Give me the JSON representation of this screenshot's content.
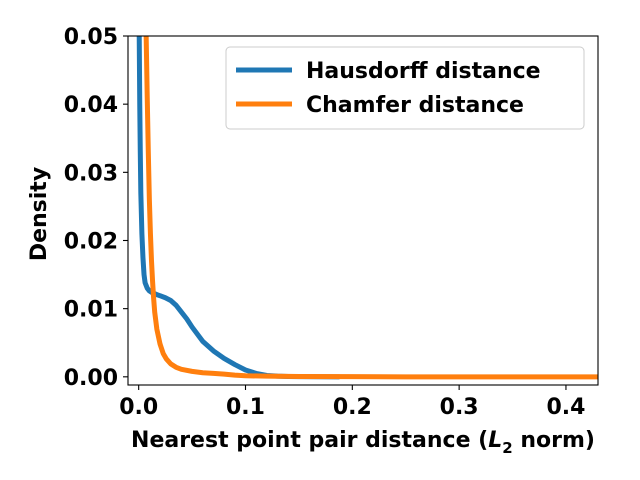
{
  "chart_data": {
    "type": "line",
    "xlabel": {
      "prefix": "Nearest point pair distance (",
      "var": "L",
      "sub": "2",
      "suffix": " norm)"
    },
    "ylabel": "Density",
    "xlim": [
      -0.01,
      0.43
    ],
    "ylim": [
      -0.0012,
      0.05
    ],
    "xticks": [
      0.0,
      0.1,
      0.2,
      0.3,
      0.4
    ],
    "xtick_labels": [
      "0.0",
      "0.1",
      "0.2",
      "0.3",
      "0.4"
    ],
    "yticks": [
      0.0,
      0.01,
      0.02,
      0.03,
      0.04,
      0.05
    ],
    "ytick_labels": [
      "0.00",
      "0.01",
      "0.02",
      "0.03",
      "0.04",
      "0.05"
    ],
    "grid": false,
    "legend_position": "upper-right",
    "series": [
      {
        "name": "Hausdorff distance",
        "color": "#1f77b4",
        "x": [
          0.0005,
          0.001,
          0.0015,
          0.002,
          0.003,
          0.004,
          0.005,
          0.006,
          0.008,
          0.01,
          0.012,
          0.015,
          0.018,
          0.02,
          0.025,
          0.03,
          0.035,
          0.04,
          0.045,
          0.05,
          0.06,
          0.07,
          0.08,
          0.09,
          0.1,
          0.11,
          0.12,
          0.13,
          0.14,
          0.15,
          0.17,
          0.188
        ],
        "y": [
          0.05,
          0.04,
          0.033,
          0.027,
          0.021,
          0.0175,
          0.015,
          0.0138,
          0.013,
          0.0126,
          0.0124,
          0.0122,
          0.012,
          0.0119,
          0.0116,
          0.0112,
          0.0105,
          0.0095,
          0.0085,
          0.0073,
          0.0052,
          0.0038,
          0.0027,
          0.0018,
          0.001,
          0.0005,
          0.0002,
          0.0001,
          5e-05,
          2e-05,
          1e-05,
          0.0
        ]
      },
      {
        "name": "Chamfer distance",
        "color": "#ff7f0e",
        "x": [
          0.007,
          0.008,
          0.009,
          0.01,
          0.011,
          0.012,
          0.013,
          0.014,
          0.015,
          0.017,
          0.02,
          0.023,
          0.026,
          0.03,
          0.035,
          0.04,
          0.05,
          0.06,
          0.07,
          0.08,
          0.09,
          0.1,
          0.12,
          0.15,
          0.2,
          0.25,
          0.3,
          0.35,
          0.43
        ],
        "y": [
          0.05,
          0.041,
          0.033,
          0.026,
          0.021,
          0.017,
          0.014,
          0.0115,
          0.0095,
          0.007,
          0.0048,
          0.0034,
          0.0026,
          0.0019,
          0.0014,
          0.0011,
          0.0008,
          0.0006,
          0.0005,
          0.0004,
          0.00025,
          0.00015,
          0.0001,
          5e-05,
          2e-05,
          0.0,
          0.0,
          0.0,
          0.0
        ]
      }
    ]
  }
}
